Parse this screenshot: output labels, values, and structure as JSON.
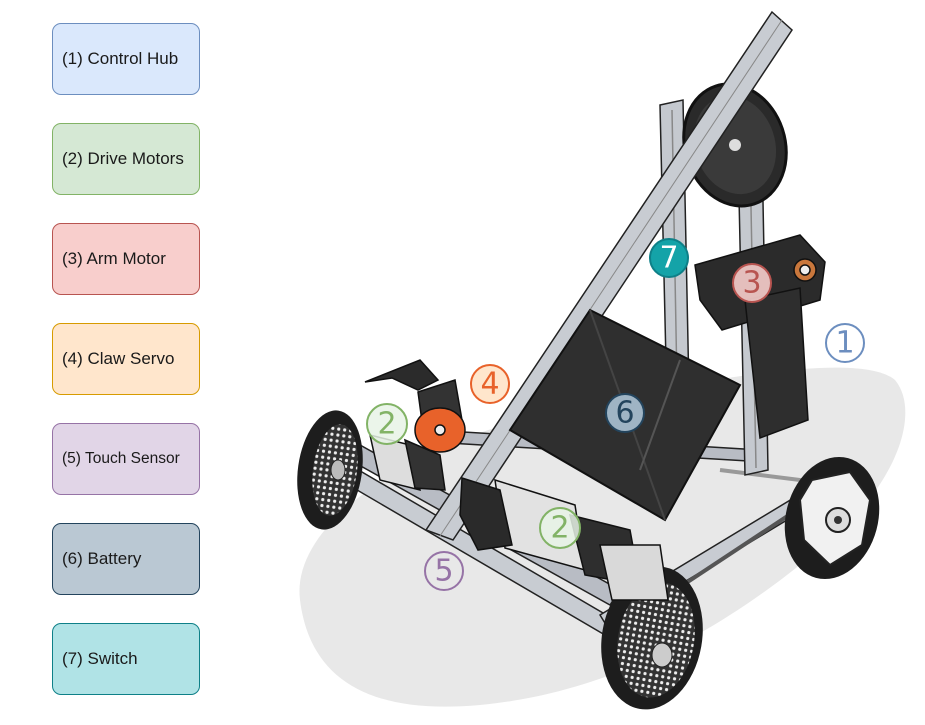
{
  "legend": [
    {
      "label": "(1) Control Hub",
      "fill": "#dae8fc",
      "stroke": "#6c8ebf"
    },
    {
      "label": "(2) Drive Motors",
      "fill": "#d5e8d4",
      "stroke": "#82b366"
    },
    {
      "label": "(3) Arm Motor",
      "fill": "#f8cecc",
      "stroke": "#b85450"
    },
    {
      "label": "(4) Claw Servo",
      "fill": "#ffe6cc",
      "stroke": "#d79b00"
    },
    {
      "label": "(5) Touch Sensor",
      "fill": "#e1d5e7",
      "stroke": "#9673a6"
    },
    {
      "label": "(6) Battery",
      "fill": "#bac8d3",
      "stroke": "#23445d"
    },
    {
      "label": "(7) Switch",
      "fill": "#b0e3e6",
      "stroke": "#0e8088"
    }
  ],
  "callouts": [
    {
      "label": "1",
      "color": "#6c8ebf",
      "fill": "none"
    },
    {
      "label": "2",
      "color": "#82b366",
      "fill": "#e8f3e6"
    },
    {
      "label": "2",
      "color": "#82b366",
      "fill": "#e8f3e6"
    },
    {
      "label": "3",
      "color": "#b85450",
      "fill": "#f8cecc"
    },
    {
      "label": "4",
      "color": "#e8622a",
      "fill": "#ffe6cc"
    },
    {
      "label": "5",
      "color": "#9673a6",
      "fill": "none"
    },
    {
      "label": "6",
      "color": "#23445d",
      "fill": "#9fb4c4"
    },
    {
      "label": "7",
      "color": "#ffffff",
      "fill": "#14a3a8"
    }
  ]
}
